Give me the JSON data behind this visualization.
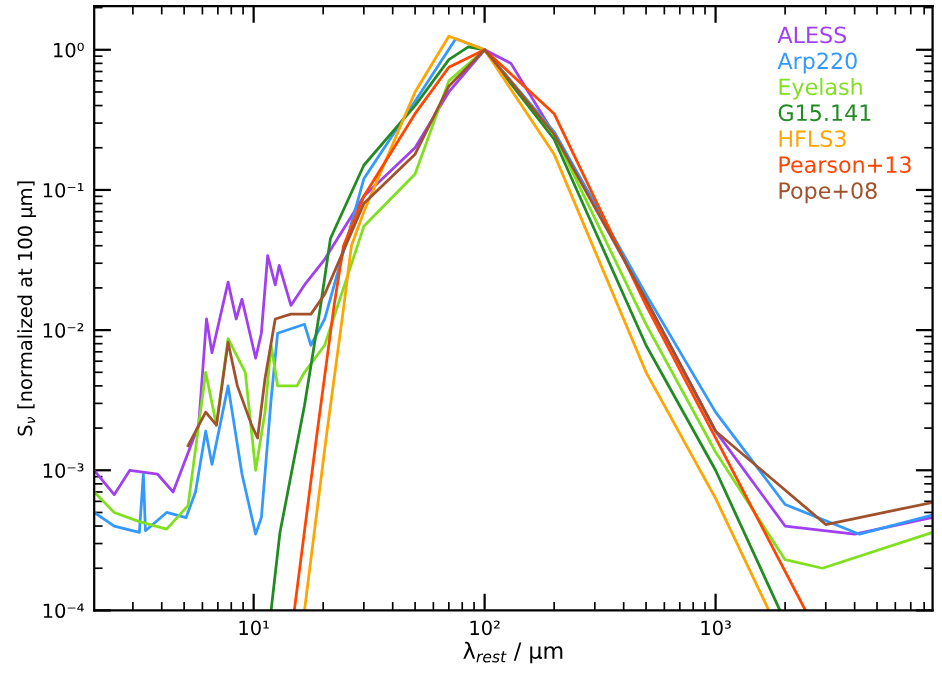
{
  "chart_data": {
    "type": "line",
    "xlabel": "λ$_{rest}$ / μm",
    "ylabel": "S$_{ν}$ [normalized at 100 μm]",
    "log": "xy",
    "xlim": [
      2.04,
      8700
    ],
    "ylim": [
      0.0001,
      2.05
    ],
    "xticks": [
      {
        "value": 10,
        "label": "10¹"
      },
      {
        "value": 100,
        "label": "10²"
      },
      {
        "value": 1000,
        "label": "10³"
      }
    ],
    "yticks": [
      {
        "value": 0.0001,
        "label": "10⁻⁴"
      },
      {
        "value": 0.001,
        "label": "10⁻³"
      },
      {
        "value": 0.01,
        "label": "10⁻²"
      },
      {
        "value": 0.1,
        "label": "10⁻¹"
      },
      {
        "value": 1,
        "label": "10⁰"
      }
    ],
    "grid": false,
    "legend": "top right",
    "line_style": "solid",
    "marker": "none",
    "series": [
      {
        "name": "ALESS",
        "color": "#a040f0",
        "x": [
          2.04,
          2.49,
          2.91,
          3.83,
          4.48,
          5.78,
          6.25,
          6.6,
          7.75,
          8.4,
          8.9,
          10.2,
          10.8,
          11.5,
          12.4,
          12.9,
          14.5,
          16.6,
          20.3,
          30,
          50,
          70,
          100,
          130,
          200,
          300,
          500,
          1000,
          2000,
          4000,
          8700
        ],
        "values": [
          0.001,
          0.00067,
          0.001,
          0.00094,
          0.0007,
          0.0021,
          0.012,
          0.0069,
          0.022,
          0.012,
          0.0166,
          0.0063,
          0.0095,
          0.034,
          0.021,
          0.029,
          0.015,
          0.021,
          0.032,
          0.09,
          0.2,
          0.5,
          1,
          0.8,
          0.25,
          0.08,
          0.0165,
          0.0019,
          0.0004,
          0.00035,
          0.00046
        ]
      },
      {
        "name": "Arp220",
        "color": "#3399ff",
        "x": [
          2.04,
          2.49,
          3.2,
          3.33,
          3.4,
          4.2,
          5.1,
          5.6,
          6.2,
          6.6,
          7.75,
          8.9,
          10.2,
          10.8,
          11.9,
          12.7,
          16.6,
          17.7,
          20.3,
          30,
          50,
          75,
          100,
          200,
          500,
          1000,
          2000,
          4200,
          8700
        ],
        "values": [
          0.0005,
          0.0004,
          0.00036,
          0.00094,
          0.00037,
          0.0005,
          0.00046,
          0.0007,
          0.0019,
          0.0011,
          0.004,
          0.00094,
          0.00035,
          0.00046,
          0.0032,
          0.0095,
          0.011,
          0.0078,
          0.012,
          0.12,
          0.43,
          1.2,
          1,
          0.26,
          0.018,
          0.0026,
          0.00057,
          0.00035,
          0.00048
        ]
      },
      {
        "name": "Eyelash",
        "color": "#80e020",
        "x": [
          2.04,
          2.49,
          3.2,
          4.2,
          5.2,
          6.2,
          6.9,
          7.75,
          9.2,
          10.2,
          11.2,
          11.9,
          12.7,
          15.4,
          16.6,
          20.3,
          30,
          50,
          70,
          100,
          200,
          500,
          1000,
          2000,
          2900,
          8700
        ],
        "values": [
          0.0007,
          0.0005,
          0.00043,
          0.00038,
          0.00056,
          0.005,
          0.0021,
          0.0087,
          0.005,
          0.001,
          0.0026,
          0.0078,
          0.004,
          0.004,
          0.005,
          0.0078,
          0.055,
          0.13,
          0.6,
          1,
          0.25,
          0.011,
          0.00135,
          0.00023,
          0.0002,
          0.00036
        ]
      },
      {
        "name": "G15.141",
        "color": "#228b22",
        "x": [
          11.9,
          13,
          16.6,
          19.5,
          21.5,
          30,
          50,
          70,
          85,
          100,
          200,
          500,
          1000,
          1900
        ],
        "values": [
          0.0001,
          0.00036,
          0.0029,
          0.015,
          0.045,
          0.15,
          0.4,
          0.85,
          1.05,
          1,
          0.23,
          0.0078,
          0.001,
          0.0001
        ]
      },
      {
        "name": "HFLS3",
        "color": "#ffa500",
        "x": [
          16.6,
          20.6,
          24.6,
          26.5,
          30,
          50,
          70,
          100,
          200,
          500,
          1000,
          1700
        ],
        "values": [
          0.0001,
          0.0017,
          0.015,
          0.04,
          0.07,
          0.5,
          1.25,
          1,
          0.18,
          0.005,
          0.00063,
          0.0001
        ]
      },
      {
        "name": "Pearson+13",
        "color": "#ff4500",
        "x": [
          15,
          18.7,
          22.3,
          24.5,
          30,
          50,
          70,
          100,
          200,
          500,
          1000,
          2000,
          2450
        ],
        "values": [
          0.0001,
          0.0017,
          0.015,
          0.04,
          0.09,
          0.35,
          0.75,
          1,
          0.35,
          0.015,
          0.0017,
          0.00019,
          0.0001
        ]
      },
      {
        "name": "Pope+08",
        "color": "#a0522d",
        "x": [
          5.2,
          6.2,
          6.9,
          7.75,
          8.5,
          9.8,
          10.4,
          11.2,
          12.4,
          14.5,
          17.7,
          20.3,
          30,
          50,
          70,
          100,
          200,
          500,
          1000,
          3000,
          8700
        ],
        "values": [
          0.0015,
          0.0026,
          0.0021,
          0.0082,
          0.004,
          0.0021,
          0.0017,
          0.0045,
          0.012,
          0.013,
          0.013,
          0.018,
          0.08,
          0.18,
          0.55,
          1,
          0.25,
          0.0165,
          0.0019,
          0.00041,
          0.00059
        ]
      }
    ]
  }
}
